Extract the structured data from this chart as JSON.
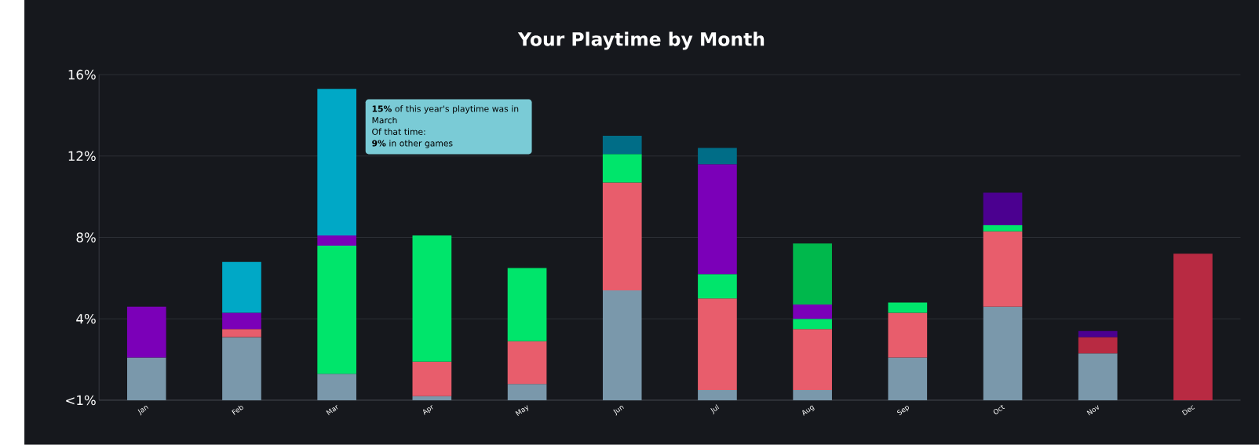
{
  "chart_data": {
    "type": "bar",
    "title": "Your Playtime by Month",
    "stacked": true,
    "grid": "y",
    "categories": [
      "Jan",
      "Feb",
      "Mar",
      "Apr",
      "May",
      "Jun",
      "Jul",
      "Aug",
      "Sep",
      "Oct",
      "Nov",
      "Dec"
    ],
    "series": [
      {
        "color": "#7a98ab",
        "values": [
          2.1,
          3.1,
          1.3,
          0.2,
          0.8,
          5.4,
          0.5,
          0.5,
          2.1,
          4.6,
          2.3,
          null
        ]
      },
      {
        "color": "#b82a42",
        "values": [
          null,
          null,
          null,
          null,
          null,
          null,
          null,
          null,
          null,
          null,
          0.8,
          7.2
        ]
      },
      {
        "color": "#e85d6c",
        "values": [
          null,
          0.4,
          null,
          1.7,
          2.1,
          5.3,
          4.5,
          3.0,
          2.2,
          3.7,
          null,
          null
        ]
      },
      {
        "color": "#00e56b",
        "values": [
          null,
          null,
          6.3,
          6.2,
          3.6,
          1.4,
          1.2,
          0.5,
          0.5,
          0.3,
          null,
          null
        ]
      },
      {
        "color": "#7b00b8",
        "values": [
          2.5,
          0.8,
          0.5,
          null,
          null,
          null,
          5.4,
          0.7,
          null,
          null,
          null,
          null
        ]
      },
      {
        "color": "#4b0090",
        "values": [
          null,
          null,
          null,
          null,
          null,
          null,
          null,
          null,
          null,
          1.6,
          0.3,
          null
        ]
      },
      {
        "color": "#00a8c6",
        "values": [
          null,
          2.5,
          7.2,
          null,
          null,
          null,
          null,
          null,
          null,
          null,
          null,
          null
        ]
      },
      {
        "color": "#006d87",
        "values": [
          null,
          null,
          null,
          null,
          null,
          0.9,
          0.8,
          null,
          null,
          null,
          null,
          null
        ]
      },
      {
        "color": "#00b84c",
        "values": [
          null,
          null,
          null,
          null,
          null,
          null,
          null,
          3.0,
          null,
          null,
          null,
          null
        ]
      }
    ],
    "ylim": [
      0,
      16
    ],
    "yticks": [
      {
        "value": 0,
        "label": "<1%"
      },
      {
        "value": 4,
        "label": "4%"
      },
      {
        "value": 8,
        "label": "8%"
      },
      {
        "value": 12,
        "label": "12%"
      },
      {
        "value": 16,
        "label": "16%"
      }
    ],
    "annotations": [
      "**15%** of this year's playtime was in March",
      "Of that time:",
      "**9%** in other games"
    ]
  }
}
